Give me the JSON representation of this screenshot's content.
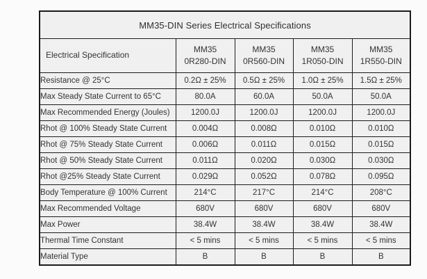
{
  "table": {
    "title": "MM35-DIN Series Electrical Specifications",
    "columns": [
      "Electrical Specification",
      "MM35\n0R280-DIN",
      "MM35\n0R560-DIN",
      "MM35\n1R050-DIN",
      "MM35\n1R550-DIN"
    ],
    "rows": [
      {
        "label": "Resistance @ 25°C",
        "values": [
          "0.2Ω ± 25%",
          "0.5Ω ± 25%",
          "1.0Ω ± 25%",
          "1.5Ω ± 25%"
        ]
      },
      {
        "label": "Max Steady State Current to 65°C",
        "values": [
          "80.0A",
          "60.0A",
          "50.0A",
          "50.0A"
        ]
      },
      {
        "label": "Max Recommended Energy (Joules)",
        "values": [
          "1200.0J",
          "1200.0J",
          "1200.0J",
          "1200.0J"
        ]
      },
      {
        "label": "Rhot @ 100% Steady State Current",
        "values": [
          "0.004Ω",
          "0.008Ω",
          "0.010Ω",
          "0.010Ω"
        ]
      },
      {
        "label": "Rhot @ 75% Steady State Current",
        "values": [
          "0.006Ω",
          "0.011Ω",
          "0.015Ω",
          "0.015Ω"
        ]
      },
      {
        "label": "Rhot @ 50% Steady State Current",
        "values": [
          "0.011Ω",
          "0.020Ω",
          "0.030Ω",
          "0.030Ω"
        ]
      },
      {
        "label": "Rhot @25% Steady State Current",
        "values": [
          "0.029Ω",
          "0.052Ω",
          "0.078Ω",
          "0.095Ω"
        ]
      },
      {
        "label": "Body Temperature @ 100% Current",
        "values": [
          "214°C",
          "217°C",
          "214°C",
          "208°C"
        ]
      },
      {
        "label": "Max Recommended Voltage",
        "values": [
          "680V",
          "680V",
          "680V",
          "680V"
        ]
      },
      {
        "label": "Max Power",
        "values": [
          "38.4W",
          "38.4W",
          "38.4W",
          "38.4W"
        ]
      },
      {
        "label": "Thermal Time Constant",
        "values": [
          "< 5 mins",
          "< 5 mins",
          "< 5 mins",
          "< 5 mins"
        ]
      },
      {
        "label": "Material Type",
        "values": [
          "B",
          "B",
          "B",
          "B"
        ]
      }
    ],
    "colors": {
      "cell_background": "#f0f0f0",
      "border": "#1b1b1b",
      "text": "#333333",
      "page_background": "#fbfbfb"
    }
  }
}
